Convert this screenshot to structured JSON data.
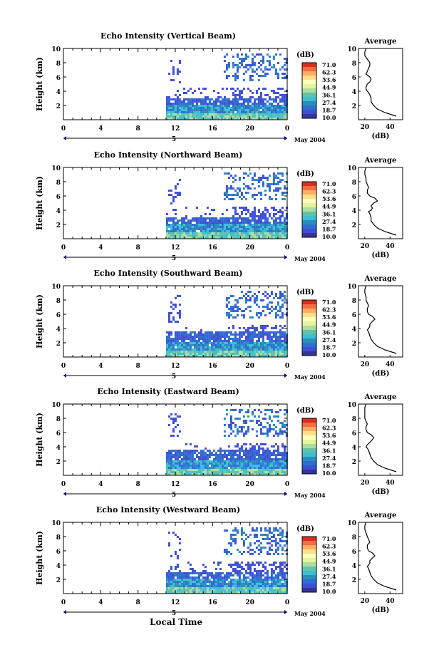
{
  "shared": {
    "ylabel": "Height (km)",
    "xticks": [
      "0",
      "4",
      "8",
      "12",
      "16",
      "20",
      "0"
    ],
    "date_day": "5",
    "month_label": "May 2004",
    "colorbar_unit": "(dB)",
    "colorbar_values": [
      "71.0",
      "62.3",
      "53.6",
      "44.9",
      "36.1",
      "27.4",
      "18.7",
      "10.0"
    ],
    "avg_title": "Average",
    "avg_xlabel": "(dB)",
    "avg_xticks": [
      "20",
      "40"
    ],
    "yticks": [
      "2",
      "4",
      "6",
      "8",
      "10"
    ],
    "bottom_xlabel": "Local Time"
  },
  "chart_data": [
    {
      "type": "heatmap",
      "title": "Echo Intensity (Vertical Beam)",
      "xlabel": "Local Time",
      "ylabel": "Height (km)",
      "xlim": [
        0,
        24
      ],
      "ylim": [
        0,
        10
      ],
      "colorbar_range_db": [
        10.0,
        71.0
      ],
      "average_profile": {
        "x_db": [
          45,
          36,
          30,
          27,
          25,
          25,
          24,
          23,
          22,
          21,
          21,
          22,
          24,
          25,
          24,
          21,
          22,
          23,
          24,
          24,
          22,
          20,
          20,
          21
        ],
        "height_km": [
          0.5,
          1.0,
          1.5,
          2.0,
          2.5,
          3.0,
          3.5,
          3.8,
          4.0,
          4.3,
          4.6,
          5.0,
          5.3,
          5.7,
          6.0,
          6.4,
          6.8,
          7.2,
          7.6,
          8.0,
          8.5,
          9.0,
          9.5,
          10.0
        ]
      }
    },
    {
      "type": "heatmap",
      "title": "Echo Intensity (Northward Beam)",
      "xlabel": "Local Time",
      "ylabel": "Height (km)",
      "xlim": [
        0,
        24
      ],
      "ylim": [
        0,
        10
      ],
      "colorbar_range_db": [
        10.0,
        71.0
      ],
      "average_profile": {
        "x_db": [
          45,
          36,
          30,
          27,
          25,
          25,
          24,
          23,
          25,
          26,
          25,
          27,
          30,
          28,
          24,
          22,
          22,
          23,
          22,
          21,
          21,
          20,
          20,
          21
        ],
        "height_km": [
          0.5,
          1.0,
          1.5,
          2.0,
          2.5,
          3.0,
          3.5,
          3.8,
          4.0,
          4.3,
          4.6,
          5.0,
          5.3,
          5.7,
          6.0,
          6.4,
          6.8,
          7.2,
          7.6,
          8.0,
          8.5,
          9.0,
          9.5,
          10.0
        ]
      }
    },
    {
      "type": "heatmap",
      "title": "Echo Intensity (Southward Beam)",
      "xlabel": "Local Time",
      "ylabel": "Height (km)",
      "xlim": [
        0,
        24
      ],
      "ylim": [
        0,
        10
      ],
      "colorbar_range_db": [
        10.0,
        71.0
      ],
      "average_profile": {
        "x_db": [
          45,
          36,
          30,
          27,
          25,
          24,
          23,
          22,
          23,
          24,
          24,
          26,
          28,
          26,
          23,
          22,
          22,
          23,
          22,
          21,
          21,
          20,
          20,
          21
        ],
        "height_km": [
          0.5,
          1.0,
          1.5,
          2.0,
          2.5,
          3.0,
          3.5,
          3.8,
          4.0,
          4.3,
          4.6,
          5.0,
          5.3,
          5.7,
          6.0,
          6.4,
          6.8,
          7.2,
          7.6,
          8.0,
          8.5,
          9.0,
          9.5,
          10.0
        ]
      }
    },
    {
      "type": "heatmap",
      "title": "Echo Intensity (Eastward Beam)",
      "xlabel": "Local Time",
      "ylabel": "Height (km)",
      "xlim": [
        0,
        24
      ],
      "ylim": [
        0,
        10
      ],
      "colorbar_range_db": [
        10.0,
        71.0
      ],
      "average_profile": {
        "x_db": [
          45,
          36,
          30,
          27,
          25,
          24,
          23,
          22,
          21,
          22,
          24,
          26,
          27,
          25,
          22,
          21,
          21,
          22,
          21,
          20,
          20,
          20,
          20,
          21
        ],
        "height_km": [
          0.5,
          1.0,
          1.5,
          2.0,
          2.5,
          3.0,
          3.5,
          3.8,
          4.0,
          4.3,
          4.6,
          5.0,
          5.3,
          5.7,
          6.0,
          6.4,
          6.8,
          7.2,
          7.6,
          8.0,
          8.5,
          9.0,
          9.5,
          10.0
        ]
      }
    },
    {
      "type": "heatmap",
      "title": "Echo Intensity (Westward Beam)",
      "xlabel": "Local Time",
      "ylabel": "Height (km)",
      "xlim": [
        0,
        24
      ],
      "ylim": [
        0,
        10
      ],
      "colorbar_range_db": [
        10.0,
        71.0
      ],
      "average_profile": {
        "x_db": [
          45,
          36,
          30,
          27,
          25,
          24,
          23,
          22,
          23,
          24,
          24,
          26,
          28,
          26,
          23,
          22,
          22,
          24,
          23,
          22,
          21,
          20,
          20,
          21
        ],
        "height_km": [
          0.5,
          1.0,
          1.5,
          2.0,
          2.5,
          3.0,
          3.5,
          3.8,
          4.0,
          4.3,
          4.6,
          5.0,
          5.3,
          5.7,
          6.0,
          6.4,
          6.8,
          7.2,
          7.6,
          8.0,
          8.5,
          9.0,
          9.5,
          10.0
        ]
      }
    }
  ]
}
